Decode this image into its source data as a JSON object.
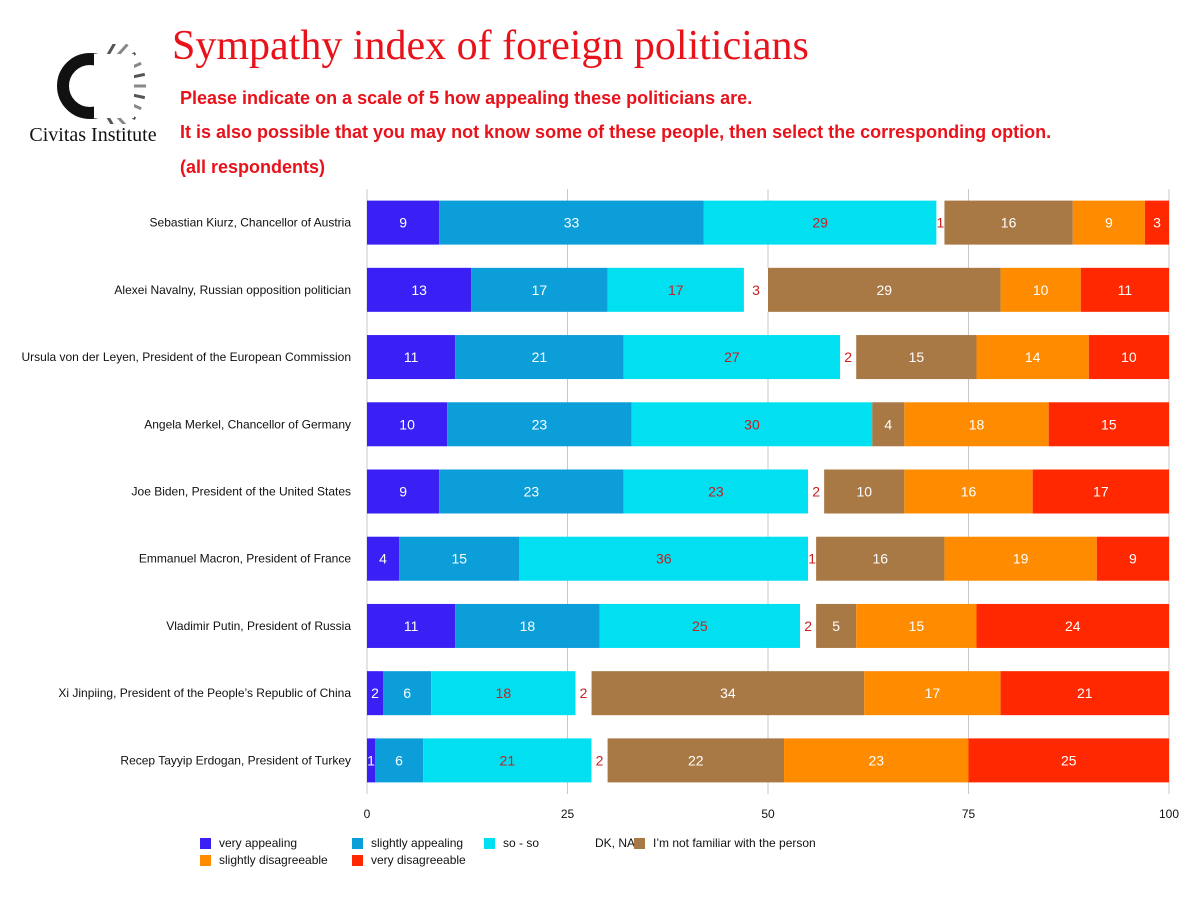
{
  "header": {
    "title": "Sympathy index of foreign politicians",
    "subtitle_lines": [
      "Please indicate on a scale of 5 how appealing these politicians are.",
      "It is also possible that you may not know some of these people, then select the corresponding option.",
      "(all respondents)"
    ]
  },
  "logo": {
    "text": "Civitas Institute",
    "icon": "civitas-c-logo"
  },
  "colors": {
    "very_appealing": "#3a20f5",
    "slightly_appealing": "#0b9ed8",
    "so_so": "#00e0f0",
    "dk_na": "#ffffff",
    "not_familiar": "#a87845",
    "slightly_disagreeable": "#ff8c00",
    "very_disagreeable": "#ff2800",
    "title_red": "#e8121b",
    "value_red": "#c81e1e",
    "grid": "#c8c8c8"
  },
  "chart_data": {
    "type": "bar",
    "orientation": "horizontal",
    "stacked": true,
    "title": "Sympathy index of foreign politicians",
    "xlim": [
      0,
      100
    ],
    "x_ticks": [
      0,
      25,
      50,
      75,
      100
    ],
    "grid": true,
    "legend_position": "bottom",
    "categories": [
      "Sebastian Kiurz, Chancellor of Austria",
      "Alexei Navalny, Russian opposition politician",
      "Ursula von der Leyen, President of the European Commission",
      "Angela Merkel, Chancellor of Germany",
      "Joe Biden, President of the United States",
      "Emmanuel Macron, President of France",
      "Vladimir Putin, President of Russia",
      "Xi Jinpiing, President of the People’s Republic of China",
      "Recep Tayyip Erdogan, President of Turkey"
    ],
    "series": [
      {
        "name": "very appealing",
        "color": "#3a20f5",
        "label_color": "#ffffff",
        "values": [
          9,
          13,
          11,
          10,
          9,
          4,
          11,
          2,
          1
        ]
      },
      {
        "name": "slightly appealing",
        "color": "#0b9ed8",
        "label_color": "#ffffff",
        "values": [
          33,
          17,
          21,
          23,
          23,
          15,
          18,
          6,
          6
        ]
      },
      {
        "name": "so - so",
        "color": "#00e0f0",
        "label_color": "#c81e1e",
        "values": [
          29,
          17,
          27,
          30,
          23,
          36,
          25,
          18,
          21
        ]
      },
      {
        "name": "DK, NA",
        "color": "#ffffff",
        "label_color": "#c81e1e",
        "values": [
          1,
          3,
          2,
          null,
          2,
          1,
          2,
          2,
          2
        ]
      },
      {
        "name": "I’m not familiar with the person",
        "color": "#a87845",
        "label_color": "#ffffff",
        "values": [
          16,
          29,
          15,
          4,
          10,
          16,
          5,
          34,
          22
        ]
      },
      {
        "name": "slightly disagreeable",
        "color": "#ff8c00",
        "label_color": "#ffffff",
        "values": [
          9,
          10,
          14,
          18,
          16,
          19,
          15,
          17,
          23
        ]
      },
      {
        "name": "very disagreeable",
        "color": "#ff2800",
        "label_color": "#ffffff",
        "values": [
          3,
          11,
          10,
          15,
          17,
          9,
          24,
          21,
          25
        ]
      }
    ]
  }
}
